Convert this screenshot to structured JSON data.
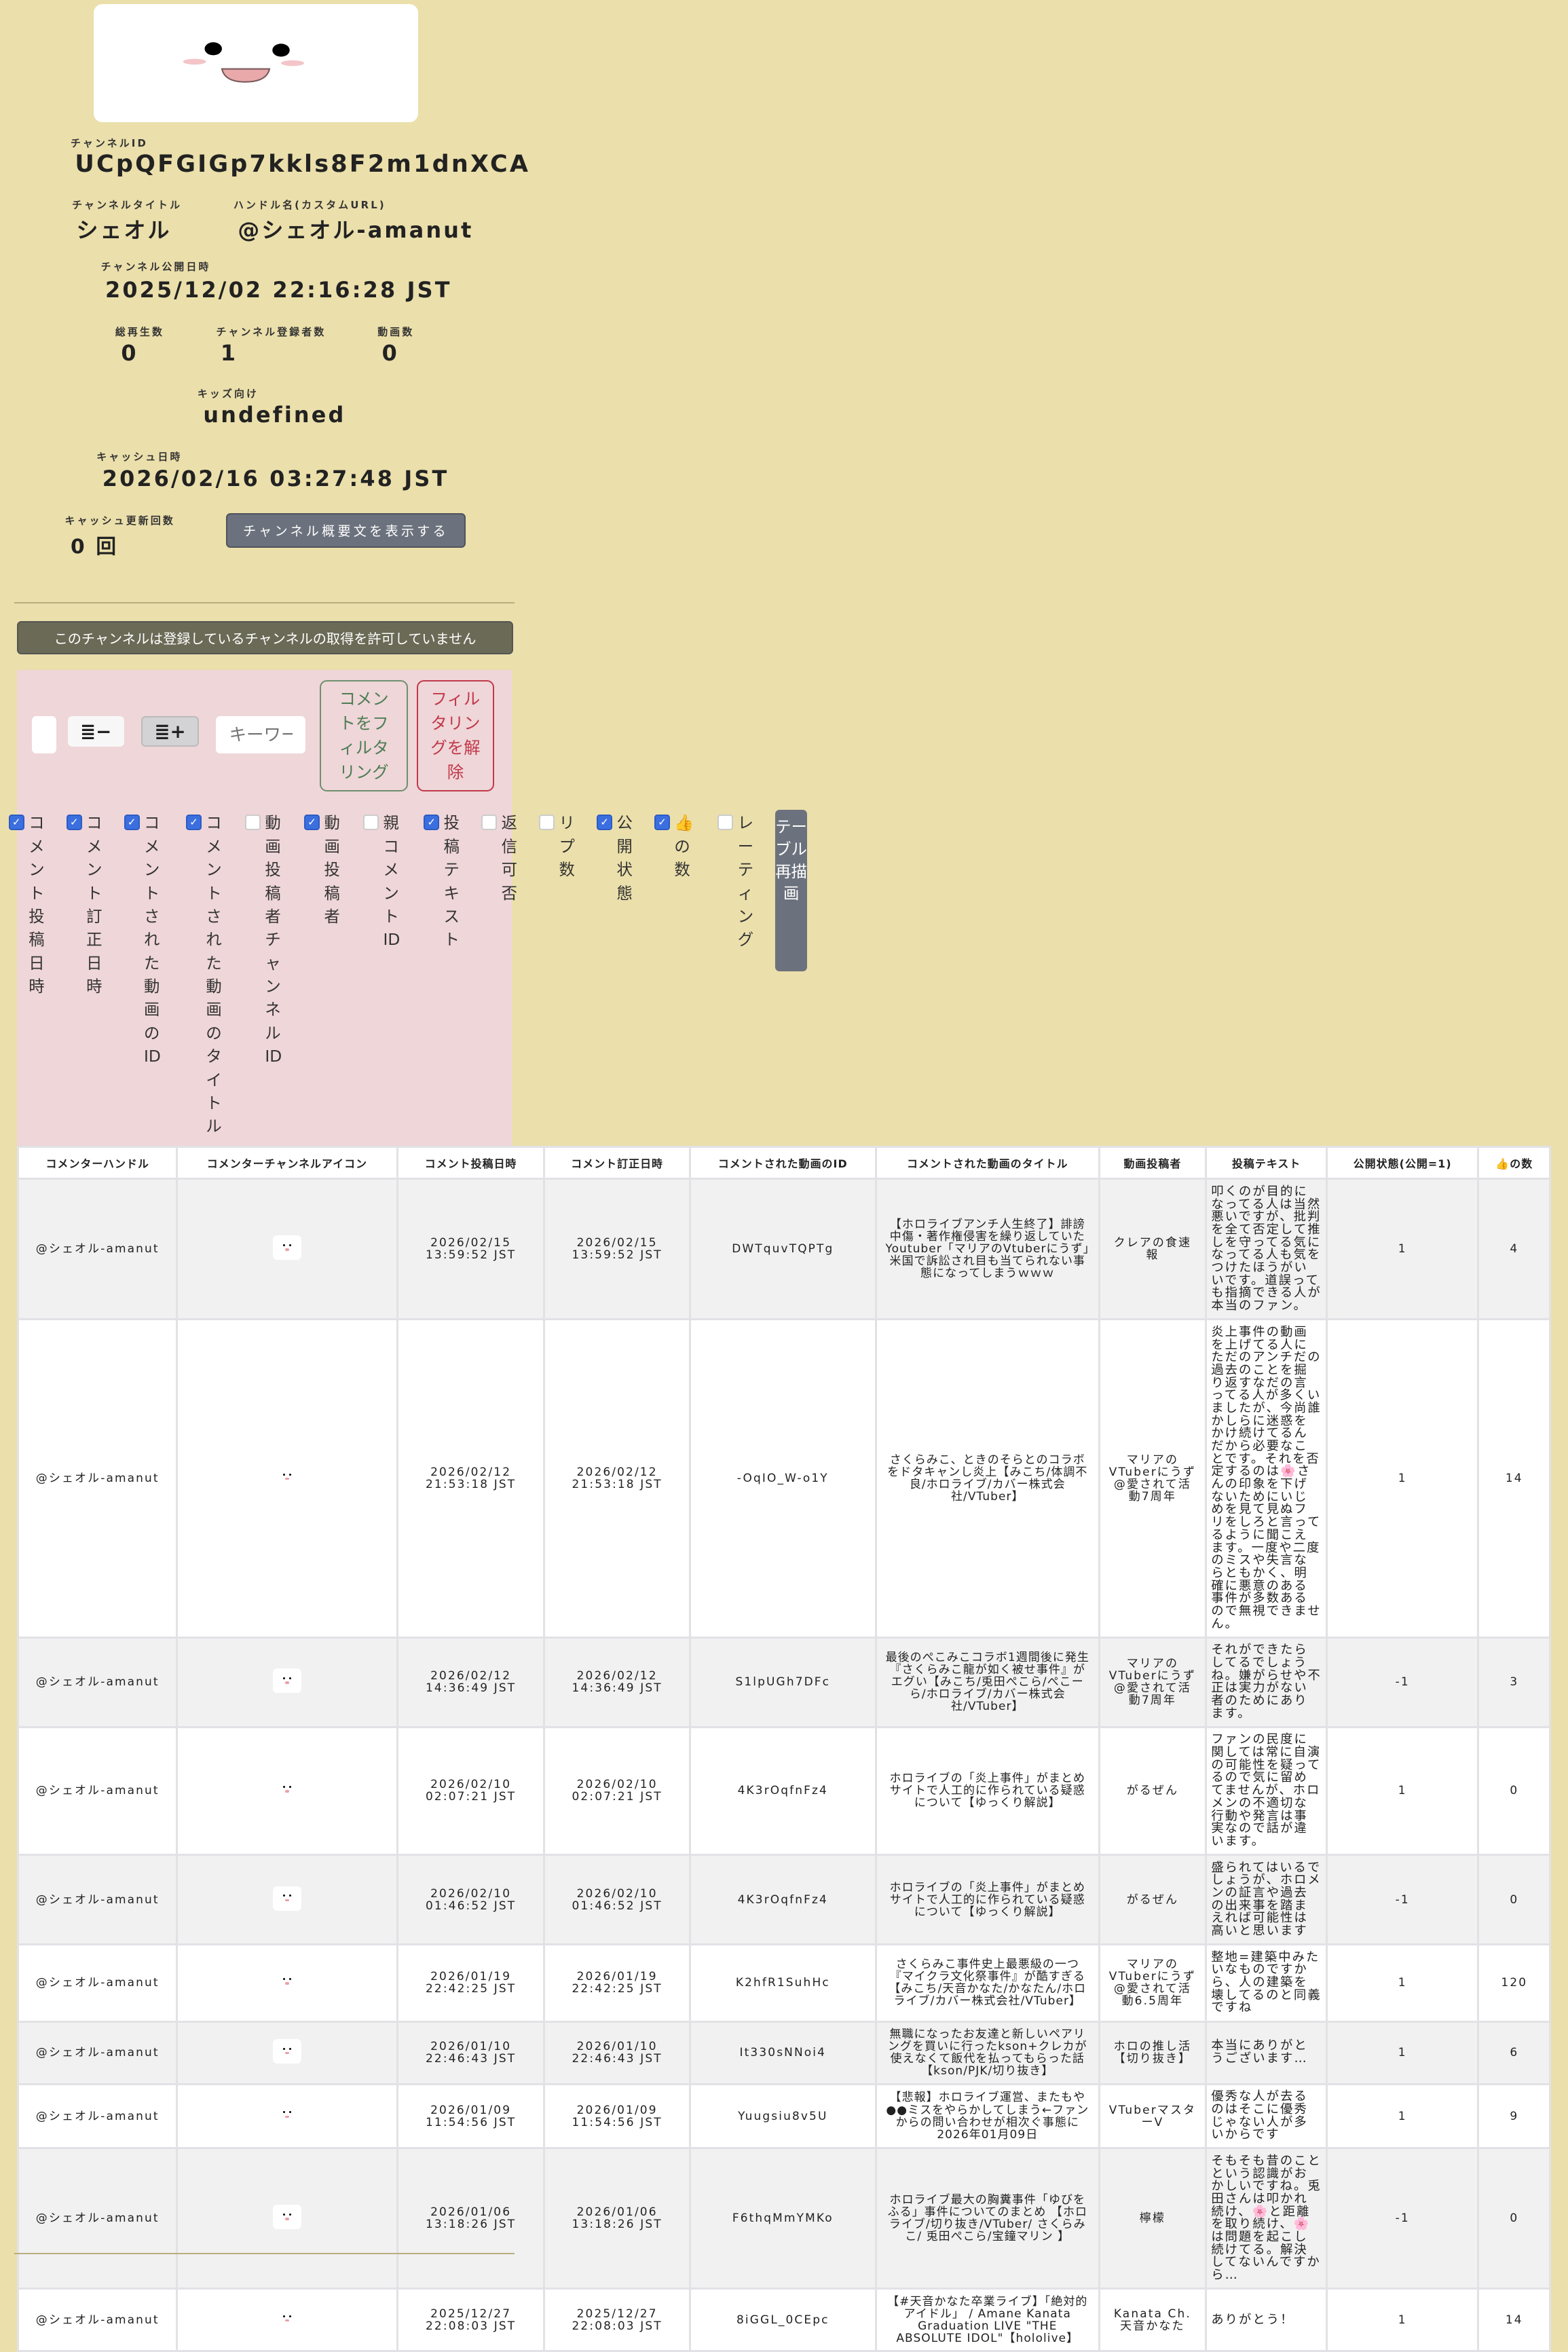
{
  "channel": {
    "id_label": "チャンネルID",
    "id": "UCpQFGIGp7kkls8F2m1dnXCA",
    "title_label": "チャンネルタイトル",
    "title": "シェオル",
    "handle_label": "ハンドル名(カスタムURL)",
    "handle": "@シェオル-amanut",
    "published_label": "チャンネル公開日時",
    "published": "2025/12/02 22:16:28 JST",
    "views_label": "総再生数",
    "views": "0",
    "subscribers_label": "チャンネル登録者数",
    "subscribers": "1",
    "videos_label": "動画数",
    "videos": "0",
    "kids_label": "キッズ向け",
    "kids": "undefined",
    "cache_date_label": "キャッシュ日時",
    "cache_date": "2026/02/16 03:27:48 JST",
    "cache_count_label": "キャッシュ更新回数",
    "cache_count": "0 回",
    "show_description_button": "チャンネル概要文を表示する"
  },
  "notice_button": "このチャンネルは登録しているチャンネルの取得を許可していません",
  "filter": {
    "decrease_label": "≣−",
    "increase_label": "≣+",
    "keyword_placeholder": "キーワー",
    "filter_button": "コメントをフィルタリング",
    "clear_button": "フィルタリングを解除",
    "redraw_button": "テーブル再描画",
    "columns": [
      {
        "label": "コメント投稿日時",
        "checked": true
      },
      {
        "label": "コメント訂正日時",
        "checked": true
      },
      {
        "label": "コメントされた動画のID",
        "checked": true
      },
      {
        "label": "コメントされた動画のタイトル",
        "checked": true
      },
      {
        "label": "動画投稿者チャンネルID",
        "checked": false
      },
      {
        "label": "動画投稿者",
        "checked": true
      },
      {
        "label": "親コメントID",
        "checked": false
      },
      {
        "label": "投稿テキスト",
        "checked": true
      },
      {
        "label": "返信可否",
        "checked": false
      },
      {
        "label": "リプ数",
        "checked": false
      },
      {
        "label": "公開状態",
        "checked": true
      },
      {
        "label": "👍の数",
        "checked": true
      },
      {
        "label": "レーティング",
        "checked": false
      }
    ]
  },
  "table": {
    "headers": [
      "コメンターハンドル",
      "コメンターチャンネルアイコン",
      "コメント投稿日時",
      "コメント訂正日時",
      "コメントされた動画のID",
      "コメントされた動画のタイトル",
      "動画投稿者",
      "投稿テキスト",
      "公開状態(公開=1)",
      "👍の数"
    ],
    "rows": [
      {
        "handle": "@シェオル-amanut",
        "posted": "2026/02/15 13:59:52 JST",
        "edited": "2026/02/15 13:59:52 JST",
        "video_id": "DWTquvTQPTg",
        "video_title": "【ホロライブアンチ人生終了】誹謗中傷・著作権侵害を繰り返していたYoutuber「マリアのVtuberにうず」米国で訴訟され目も当てられない事態になってしまうｗｗｗ",
        "uploader": "クレアの食速報",
        "text": "叩くのが目的になってる人は当然悪いですが、批判を全て否定して推しを守ってる気になってる人も気をつけたほうがいいです。道誤っても指摘できる人が本当のファン。",
        "public": "1",
        "likes": "4"
      },
      {
        "handle": "@シェオル-amanut",
        "posted": "2026/02/12 21:53:18 JST",
        "edited": "2026/02/12 21:53:18 JST",
        "video_id": "-OqIO_W-o1Y",
        "video_title": "さくらみこ、ときのそらとのコラボをドタキャンし炎上【みこち/体調不良/ホロライブ/カバー株式会社/VTuber】",
        "uploader": "マリアのVTuberにうず@愛されて活動7周年",
        "text": "炎上事件の動画を上げてる人にただのアンチだの過去のことを掘り返すなだの言ってる人が多くいましたが、今尚誰かしらに迷惑をかけ続けてるんだから必要なことです。それを否定するのは🌸さんの印象を下げないためにいじめを見て見ぬフリをしろと言ってるように聞こえます。一度や二度のミスや失言ならともかく、明確に悪意のある事件が多数あるので無視できません。",
        "public": "1",
        "likes": "14"
      },
      {
        "handle": "@シェオル-amanut",
        "posted": "2026/02/12 14:36:49 JST",
        "edited": "2026/02/12 14:36:49 JST",
        "video_id": "S1lpUGh7DFc",
        "video_title": "最後のぺこみこコラボ1週間後に発生『さくらみこ龍が如く被せ事件』がエグい【みこち/兎田ぺこら/ぺこーら/ホロライブ/カバー株式会社/VTuber】",
        "uploader": "マリアのVTuberにうず@愛されて活動7周年",
        "text": "それができたらしてるでしょうね。嫌がらせや不正は実力がない者のためにあります。",
        "public": "-1",
        "likes": "3"
      },
      {
        "handle": "@シェオル-amanut",
        "posted": "2026/02/10 02:07:21 JST",
        "edited": "2026/02/10 02:07:21 JST",
        "video_id": "4K3rOqfnFz4",
        "video_title": "ホロライブの「炎上事件」がまとめサイトで人工的に作られている疑惑について【ゆっくり解説】",
        "uploader": "がるぜん",
        "text": "ファンの民度に関しては常に自演の可能性を疑ってるので気に留めてませんが、ホロメンの不適切な行動や発言は事実なので話が違います。",
        "public": "1",
        "likes": "0"
      },
      {
        "handle": "@シェオル-amanut",
        "posted": "2026/02/10 01:46:52 JST",
        "edited": "2026/02/10 01:46:52 JST",
        "video_id": "4K3rOqfnFz4",
        "video_title": "ホロライブの「炎上事件」がまとめサイトで人工的に作られている疑惑について【ゆっくり解説】",
        "uploader": "がるぜん",
        "text": "盛られてはいるでしょうが、ホロメンの証言や過去の出来事を踏まえれば可能性は高いと思います",
        "public": "-1",
        "likes": "0"
      },
      {
        "handle": "@シェオル-amanut",
        "posted": "2026/01/19 22:42:25 JST",
        "edited": "2026/01/19 22:42:25 JST",
        "video_id": "K2hfR1SuhHc",
        "video_title": "さくらみこ事件史上最悪級の一つ『マイクラ文化祭事件』が酷すぎる【みこち/天音かなた/かなたん/ホロライブ/カバー株式会社/VTuber】",
        "uploader": "マリアのVTuberにうず@愛されて活動6.5周年",
        "text": "整地=建築中みたいなものですから、人の建築を壊してるのと同義ですね",
        "public": "1",
        "likes": "120"
      },
      {
        "handle": "@シェオル-amanut",
        "posted": "2026/01/10 22:46:43 JST",
        "edited": "2026/01/10 22:46:43 JST",
        "video_id": "It330sNNoi4",
        "video_title": "無職になったお友達と新しいペアリングを買いに行ったkson+クレカが使えなくて飯代を払ってもらった話【kson/PJK/切り抜き】",
        "uploader": "ホロの推し活【切り抜き】",
        "text": "本当にありがとうございます…",
        "public": "1",
        "likes": "6"
      },
      {
        "handle": "@シェオル-amanut",
        "posted": "2026/01/09 11:54:56 JST",
        "edited": "2026/01/09 11:54:56 JST",
        "video_id": "Yuugsiu8v5U",
        "video_title": "【悲報】ホロライブ運営、またもや●●ミスをやらかしてしまう←ファンからの問い合わせが相次ぐ事態に 2026年01月09日",
        "uploader": "VTuberマスターV",
        "text": "優秀な人が去るのはそこに優秀じゃない人が多いからです",
        "public": "1",
        "likes": "9"
      },
      {
        "handle": "@シェオル-amanut",
        "posted": "2026/01/06 13:18:26 JST",
        "edited": "2026/01/06 13:18:26 JST",
        "video_id": "F6thqMmYMKo",
        "video_title": "ホロライブ最大の胸糞事件「ゆびをふる」事件についてのまとめ 【ホロライブ/切り抜き/VTuber/ さくらみこ/ 兎田ぺこら/宝鐘マリン 】",
        "uploader": "檸檬",
        "text": "そもそも昔のことという認識がおかしいですね。兎田さんは叩かれ続け、🌸と距離を取り続け、🌸は問題を起こし続けてる。解決してないんですから…",
        "public": "-1",
        "likes": "0"
      },
      {
        "handle": "@シェオル-amanut",
        "posted": "2025/12/27 22:08:03 JST",
        "edited": "2025/12/27 22:08:03 JST",
        "video_id": "8iGGL_0CEpc",
        "video_title": "【#天音かなた卒業ライブ】「絶対的アイドル」 / Amane Kanata Graduation LIVE \"THE ABSOLUTE IDOL\"【hololive】",
        "uploader": "Kanata Ch. 天音かなた",
        "text": "ありがとう！",
        "public": "1",
        "likes": "14"
      }
    ]
  },
  "colors": {
    "background": "#ebdfab",
    "panel": "#efd6d8",
    "notice": "#6b6a56",
    "button_gray": "#6c727d",
    "filter_green": "#4e7d55",
    "clear_red": "#c0394b",
    "checkbox": "#3b6fe0"
  }
}
